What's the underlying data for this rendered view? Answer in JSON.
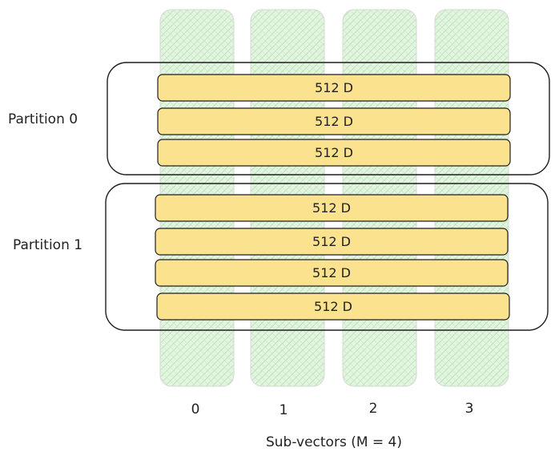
{
  "partitions": [
    {
      "label": "Partition 0",
      "vectors": [
        "512 D",
        "512 D",
        "512 D"
      ]
    },
    {
      "label": "Partition 1",
      "vectors": [
        "512 D",
        "512 D",
        "512 D",
        "512 D"
      ]
    }
  ],
  "subvector_columns": [
    "0",
    "1",
    "2",
    "3"
  ],
  "axis_label": "Sub-vectors (M = 4)",
  "colors": {
    "column_fill": "#dff2dc",
    "column_hatch": "#9fd99b",
    "vector_fill": "#fbe28e",
    "stroke": "#1e1e1e"
  }
}
